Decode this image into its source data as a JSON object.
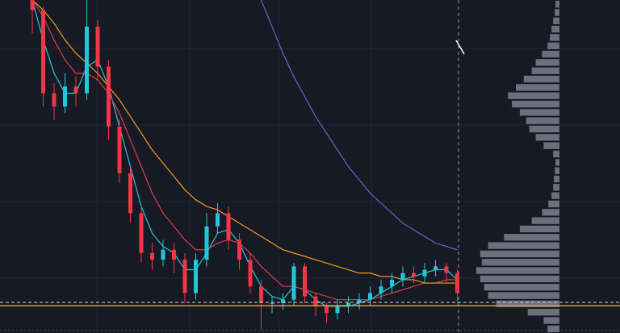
{
  "chart_data": {
    "type": "candlestick",
    "ylim": [
      0,
      100
    ],
    "up_color": "#26c6da",
    "down_color": "#f23645",
    "open": [
      100,
      97,
      72,
      68,
      74,
      72,
      92,
      80,
      62,
      48,
      36,
      24,
      22,
      25,
      22,
      12,
      22,
      32,
      36,
      28,
      22,
      14,
      9,
      9,
      10,
      20,
      11,
      8,
      6,
      8,
      9,
      10,
      12,
      14,
      16,
      18,
      17,
      19,
      20,
      18
    ],
    "close": [
      97,
      72,
      68,
      74,
      72,
      92,
      80,
      62,
      48,
      36,
      24,
      22,
      25,
      22,
      12,
      22,
      32,
      36,
      28,
      22,
      14,
      9,
      9,
      10,
      20,
      11,
      8,
      6,
      8,
      9,
      10,
      12,
      14,
      16,
      18,
      17,
      19,
      20,
      18,
      12
    ],
    "high": [
      100,
      98,
      75,
      78,
      77,
      100,
      94,
      82,
      64,
      50,
      38,
      27,
      28,
      27,
      24,
      24,
      36,
      39,
      38,
      30,
      24,
      16,
      11,
      12,
      21,
      21,
      12,
      9,
      10,
      11,
      12,
      14,
      16,
      18,
      20,
      20,
      21,
      22,
      21,
      19
    ],
    "low": [
      90,
      68,
      64,
      66,
      68,
      70,
      76,
      58,
      45,
      33,
      21,
      19,
      20,
      18,
      9,
      10,
      20,
      30,
      25,
      19,
      12,
      1,
      6,
      7,
      8,
      9,
      5,
      3,
      4,
      6,
      7,
      8,
      10,
      12,
      14,
      15,
      15,
      17,
      15,
      9
    ],
    "series": [
      {
        "color": "#26c6da",
        "values": [
          100,
          88,
          78,
          72,
          72,
          80,
          82,
          74,
          62,
          50,
          38,
          30,
          26,
          24,
          19,
          19,
          24,
          30,
          31,
          27,
          20,
          14,
          11,
          10,
          14,
          13,
          10,
          8,
          8,
          8,
          9,
          10,
          12,
          14,
          16,
          17,
          18,
          19,
          19,
          16
        ]
      },
      {
        "color": "#e03a4a",
        "values": [
          100,
          95,
          88,
          82,
          78,
          78,
          76,
          72,
          66,
          58,
          50,
          42,
          36,
          32,
          28,
          25,
          25,
          27,
          28,
          27,
          24,
          20,
          17,
          14,
          14,
          13,
          12,
          11,
          10,
          10,
          10,
          10,
          11,
          12,
          13,
          14,
          15,
          15,
          16,
          16
        ]
      },
      {
        "color": "#f29c1f",
        "values": [
          100,
          97,
          93,
          88,
          84,
          81,
          78,
          74,
          70,
          65,
          60,
          55,
          51,
          47,
          43,
          40,
          38,
          37,
          35,
          33,
          31,
          29,
          27,
          25,
          24,
          23,
          22,
          21,
          20,
          19,
          18,
          18,
          17,
          17,
          16,
          16,
          15,
          15,
          15,
          15
        ]
      },
      {
        "color": "#7e57c2",
        "values": [
          null,
          null,
          null,
          null,
          null,
          null,
          null,
          null,
          null,
          null,
          null,
          null,
          null,
          null,
          null,
          null,
          null,
          null,
          null,
          null,
          null,
          100,
          92,
          84,
          77,
          71,
          65,
          60,
          55,
          50,
          46,
          42,
          39,
          36,
          33,
          31,
          29,
          27,
          26,
          25
        ]
      }
    ],
    "price_lines": [
      {
        "value": 8.2,
        "color": "#f29c1f",
        "style": "solid"
      },
      {
        "value": 9.2,
        "color": "#d1d4dc",
        "style": "dashed"
      }
    ],
    "profile": {
      "color": "#8a8e99",
      "xlim": [
        0,
        110
      ],
      "values": [
        5,
        6,
        8,
        10,
        12,
        15,
        22,
        30,
        35,
        45,
        55,
        65,
        60,
        50,
        42,
        38,
        30,
        20,
        8,
        5,
        6,
        7,
        8,
        10,
        14,
        22,
        35,
        50,
        70,
        90,
        100,
        98,
        105,
        100,
        95,
        90,
        80,
        40,
        20,
        15
      ]
    }
  }
}
